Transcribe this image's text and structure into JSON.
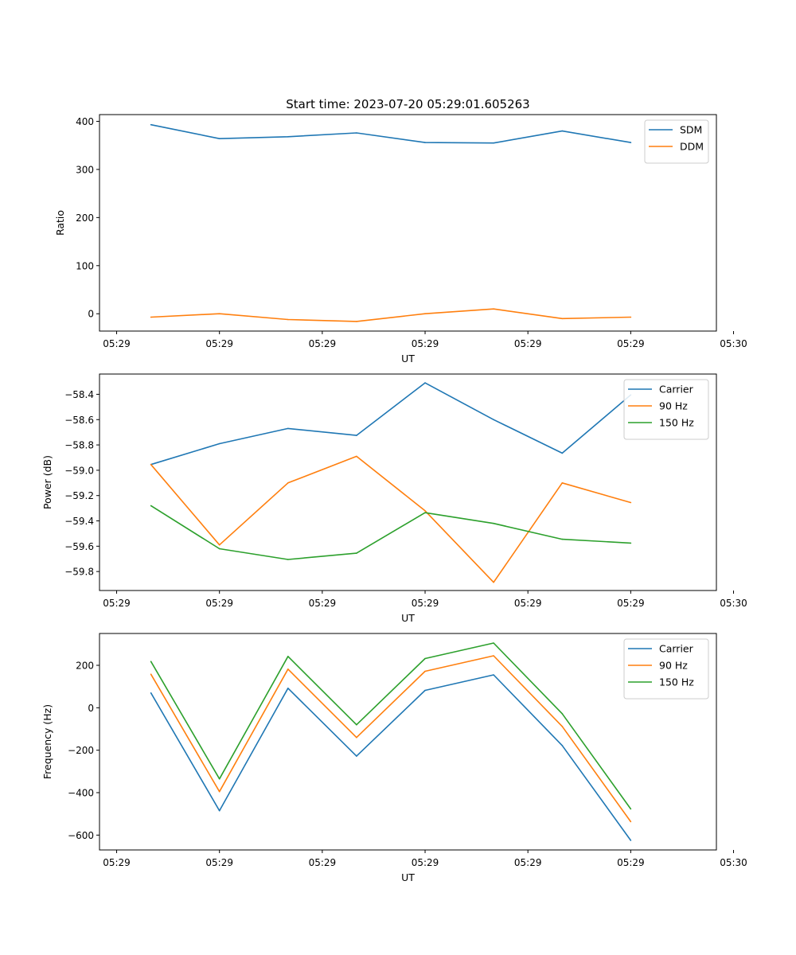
{
  "chart_data": [
    {
      "type": "line",
      "title": "Start time: 2023-07-20 05:29:01.605263",
      "xlabel": "UT",
      "ylabel": "Ratio",
      "x": [
        1,
        2,
        3,
        4,
        5,
        6,
        7,
        8
      ],
      "xlim": [
        0.25,
        9.25
      ],
      "x_ticks": [
        0.5,
        2,
        3.5,
        5,
        6.5,
        8,
        9.5
      ],
      "x_tick_labels": [
        "05:29",
        "05:29",
        "05:29",
        "05:29",
        "05:29",
        "05:29",
        "05:30"
      ],
      "ylim": [
        -36,
        414
      ],
      "y_ticks": [
        0,
        100,
        200,
        300,
        400
      ],
      "y_tick_labels": [
        "0",
        "100",
        "200",
        "300",
        "400"
      ],
      "legend_position": "top-right",
      "series": [
        {
          "name": "SDM",
          "color": "#1f77b4",
          "values": [
            393,
            364,
            368,
            376,
            356,
            355,
            380,
            356
          ]
        },
        {
          "name": "DDM",
          "color": "#ff7f0e",
          "values": [
            -7,
            0,
            -12,
            -16,
            0,
            10,
            -10,
            -7
          ]
        }
      ]
    },
    {
      "type": "line",
      "title": "",
      "xlabel": "UT",
      "ylabel": "Power (dB)",
      "x": [
        1,
        2,
        3,
        4,
        5,
        6,
        7,
        8
      ],
      "xlim": [
        0.25,
        9.25
      ],
      "x_ticks": [
        0.5,
        2,
        3.5,
        5,
        6.5,
        8,
        9.5
      ],
      "x_tick_labels": [
        "05:29",
        "05:29",
        "05:29",
        "05:29",
        "05:29",
        "05:29",
        "05:30"
      ],
      "ylim": [
        -59.95,
        -58.24
      ],
      "y_ticks": [
        -59.8,
        -59.6,
        -59.4,
        -59.2,
        -59.0,
        -58.8,
        -58.6,
        -58.4
      ],
      "y_tick_labels": [
        "−59.8",
        "−59.6",
        "−59.4",
        "−59.2",
        "−59.0",
        "−58.8",
        "−58.6",
        "−58.4"
      ],
      "legend_position": "top-right",
      "series": [
        {
          "name": "Carrier",
          "color": "#1f77b4",
          "values": [
            -58.955,
            -58.79,
            -58.67,
            -58.725,
            -58.31,
            -58.6,
            -58.865,
            -58.405
          ]
        },
        {
          "name": "90 Hz",
          "color": "#ff7f0e",
          "values": [
            -58.955,
            -59.59,
            -59.1,
            -58.89,
            -59.32,
            -59.885,
            -59.1,
            -59.255
          ]
        },
        {
          "name": "150 Hz",
          "color": "#2ca02c",
          "values": [
            -59.28,
            -59.62,
            -59.705,
            -59.655,
            -59.335,
            -59.42,
            -59.545,
            -59.575
          ]
        }
      ]
    },
    {
      "type": "line",
      "title": "",
      "xlabel": "UT",
      "ylabel": "Frequency (Hz)",
      "x": [
        1,
        2,
        3,
        4,
        5,
        6,
        7,
        8
      ],
      "xlim": [
        0.25,
        9.25
      ],
      "x_ticks": [
        0.5,
        2,
        3.5,
        5,
        6.5,
        8,
        9.5
      ],
      "x_tick_labels": [
        "05:29",
        "05:29",
        "05:29",
        "05:29",
        "05:29",
        "05:29",
        "05:30"
      ],
      "ylim": [
        -670,
        350
      ],
      "y_ticks": [
        -600,
        -400,
        -200,
        0,
        200
      ],
      "y_tick_labels": [
        "−600",
        "−400",
        "−200",
        "0",
        "200"
      ],
      "legend_position": "top-right",
      "series": [
        {
          "name": "Carrier",
          "color": "#1f77b4",
          "values": [
            70,
            -485,
            92,
            -228,
            82,
            155,
            -178,
            -625
          ]
        },
        {
          "name": "90 Hz",
          "color": "#ff7f0e",
          "values": [
            158,
            -395,
            182,
            -140,
            172,
            245,
            -88,
            -537
          ]
        },
        {
          "name": "150 Hz",
          "color": "#2ca02c",
          "values": [
            218,
            -335,
            242,
            -80,
            232,
            305,
            -28,
            -477
          ]
        }
      ]
    }
  ]
}
